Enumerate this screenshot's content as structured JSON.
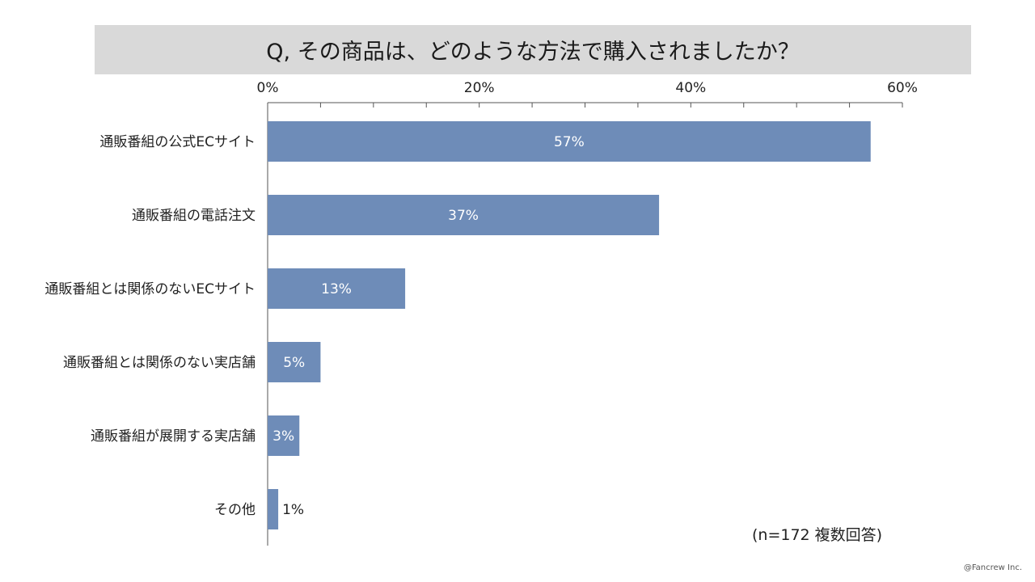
{
  "title": "Q, その商品は、どのような方法で購入されましたか？",
  "note": "(n=172 複数回答)",
  "copyright": "@Fancrew Inc.",
  "chart_data": {
    "type": "bar",
    "orientation": "horizontal",
    "categories": [
      "通販番組の公式ECサイト",
      "通販番組の電話注文",
      "通販番組とは関係のないECサイト",
      "通販番組とは関係のない実店舗",
      "通販番組が展開する実店舗",
      "その他"
    ],
    "values": [
      57,
      37,
      13,
      5,
      3,
      1
    ],
    "value_labels": [
      "57%",
      "37%",
      "13%",
      "5%",
      "3%",
      "1%"
    ],
    "xlim": [
      0,
      60
    ],
    "x_ticks": [
      0,
      20,
      40,
      60
    ],
    "x_tick_labels": [
      "0%",
      "20%",
      "40%",
      "60%"
    ],
    "axis_position": "top",
    "bar_color": "#6e8cb8",
    "grid": false
  }
}
